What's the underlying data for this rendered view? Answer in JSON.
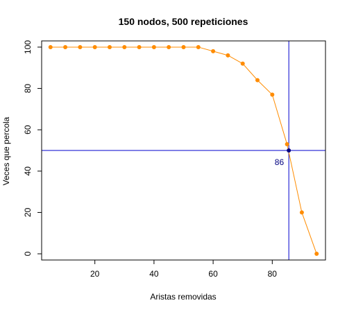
{
  "chart_data": {
    "type": "line",
    "title": "150 nodos, 500 repeticiones",
    "xlabel": "Aristas removidas",
    "ylabel": "Veces que percola",
    "xlim": [
      2,
      98
    ],
    "ylim": [
      -3,
      103
    ],
    "xticks": [
      20,
      40,
      60,
      80
    ],
    "yticks": [
      0,
      20,
      40,
      60,
      80,
      100
    ],
    "grid": false,
    "series": [
      {
        "color": "#ff8c00",
        "x": [
          5,
          10,
          15,
          20,
          25,
          30,
          35,
          40,
          45,
          50,
          55,
          60,
          65,
          70,
          75,
          80,
          85,
          90,
          95
        ],
        "y": [
          100,
          100,
          100,
          100,
          100,
          100,
          100,
          100,
          100,
          100,
          100,
          98,
          96,
          92,
          84,
          77,
          53,
          20,
          0
        ]
      }
    ],
    "reference_lines": {
      "horizontal_y": 50,
      "vertical_x": 85.6,
      "color": "#0000cd"
    },
    "intersection_point": {
      "x": 85.6,
      "y": 50,
      "color": "#000080"
    },
    "annotation": {
      "text": "86",
      "color": "#000080"
    }
  }
}
